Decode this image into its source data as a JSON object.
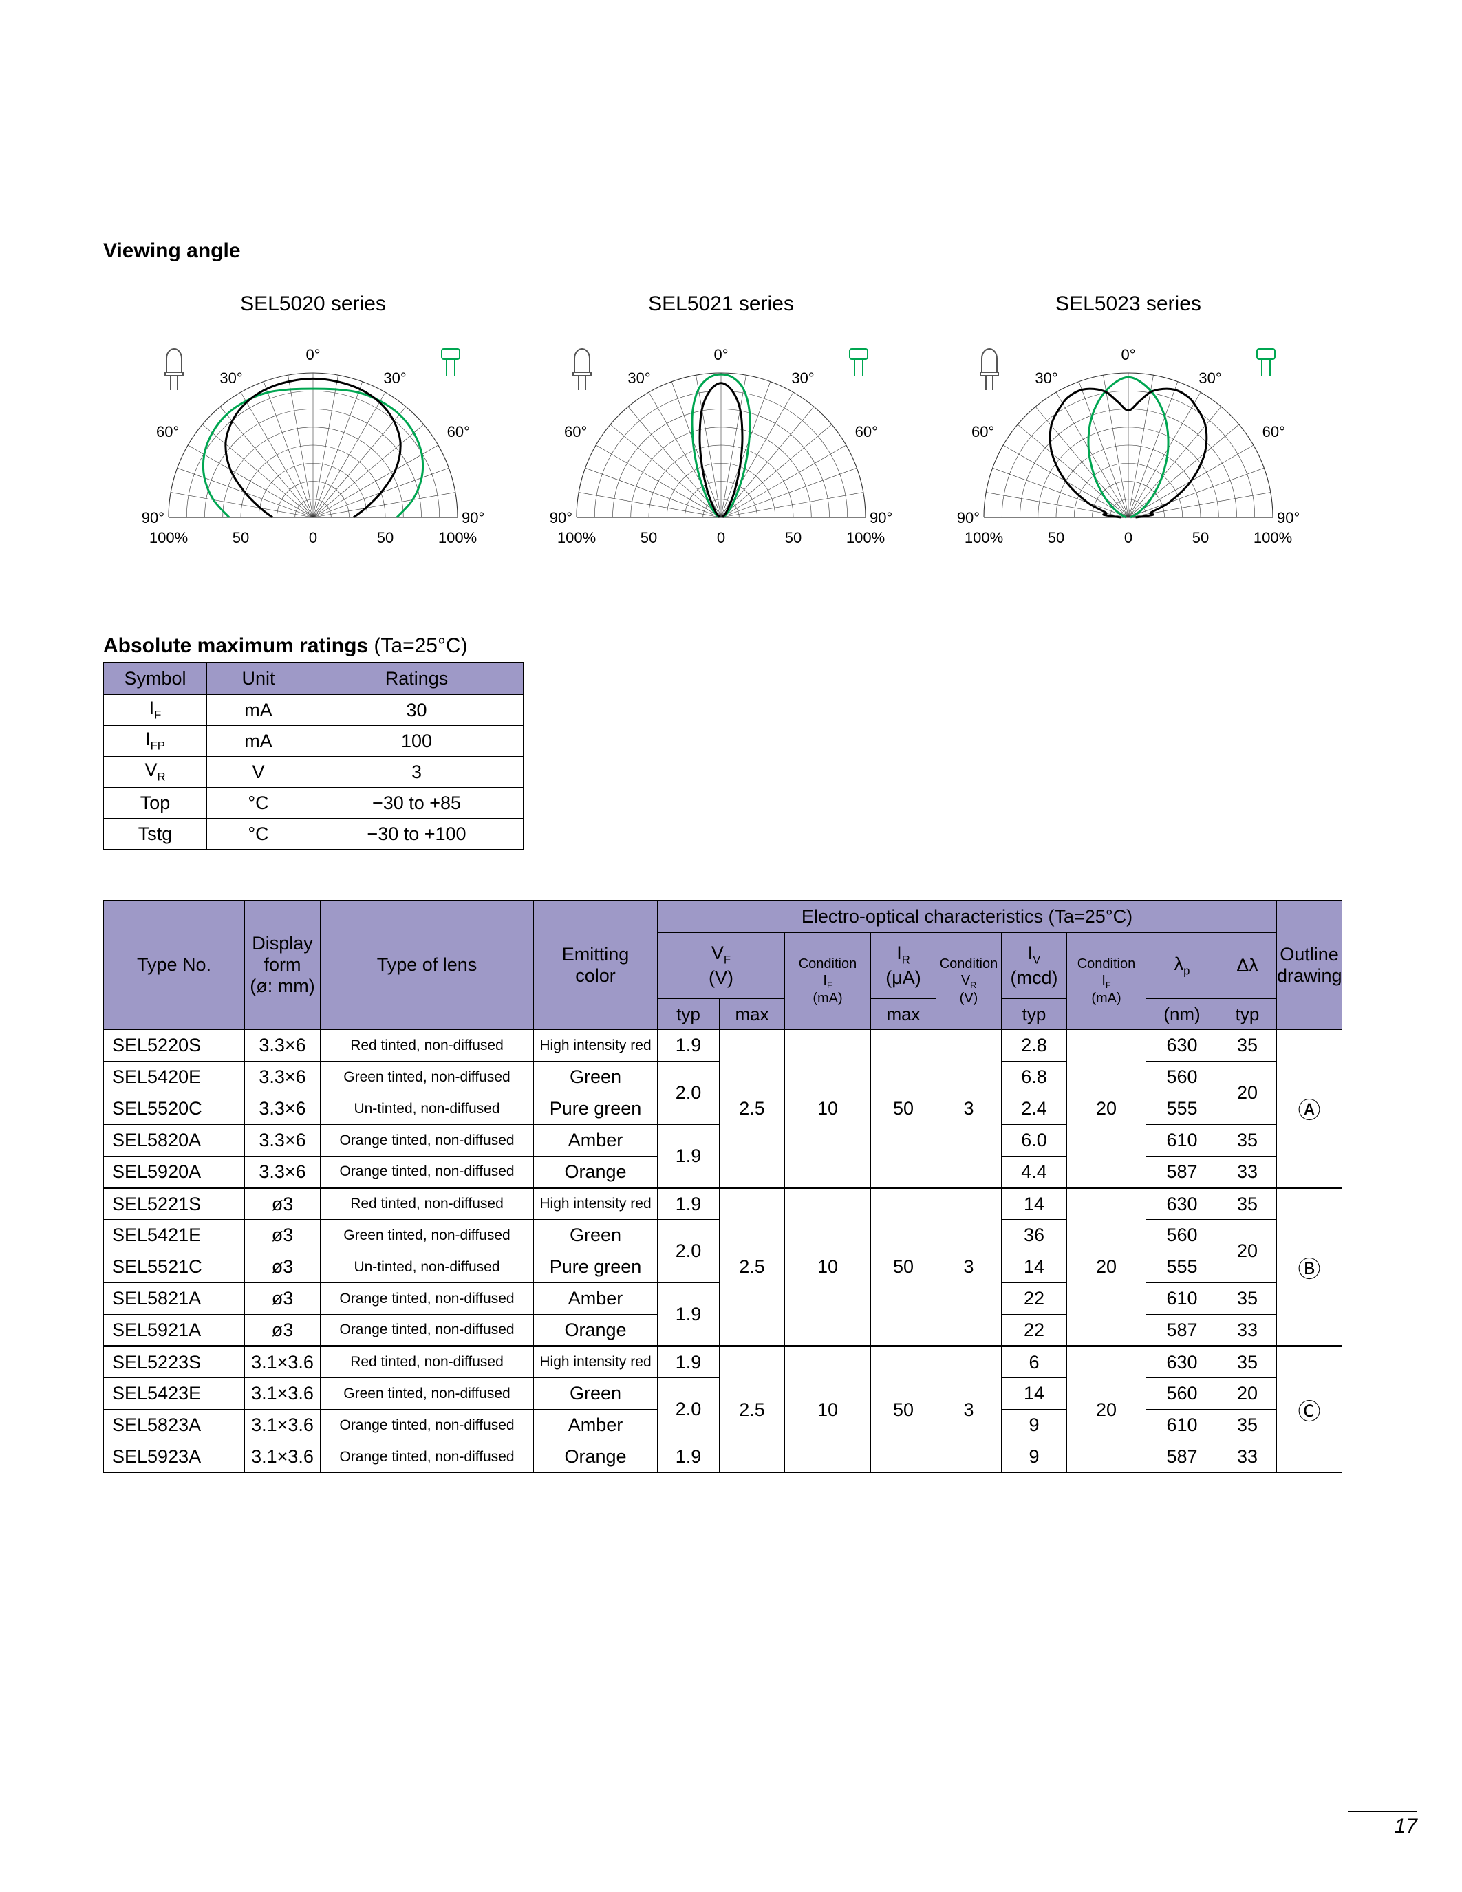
{
  "page_number": "17",
  "viewing_angle": {
    "heading": "Viewing angle",
    "green_color": "#00a651",
    "labels": {
      "zero": "0°",
      "deg30": "30°",
      "deg60": "60°",
      "deg90": "90°",
      "p100": "100%",
      "p50": "50",
      "p0": "0"
    },
    "charts": [
      {
        "title": "SEL5020 series",
        "curves": {
          "black": [
            [
              0,
              0.96
            ],
            [
              10,
              0.955
            ],
            [
              20,
              0.945
            ],
            [
              30,
              0.92
            ],
            [
              40,
              0.87
            ],
            [
              50,
              0.79
            ],
            [
              60,
              0.66
            ],
            [
              70,
              0.5
            ],
            [
              80,
              0.37
            ],
            [
              90,
              0.28
            ]
          ],
          "green": [
            [
              0,
              0.89
            ],
            [
              10,
              0.9
            ],
            [
              20,
              0.92
            ],
            [
              30,
              0.93
            ],
            [
              40,
              0.93
            ],
            [
              50,
              0.91
            ],
            [
              60,
              0.87
            ],
            [
              70,
              0.8
            ],
            [
              80,
              0.7
            ],
            [
              90,
              0.58
            ]
          ]
        }
      },
      {
        "title": "SEL5021 series",
        "curves": {
          "black": [
            [
              0,
              0.93
            ],
            [
              5,
              0.88
            ],
            [
              10,
              0.76
            ],
            [
              15,
              0.57
            ],
            [
              20,
              0.39
            ],
            [
              25,
              0.25
            ],
            [
              30,
              0.16
            ],
            [
              40,
              0.07
            ],
            [
              50,
              0.04
            ],
            [
              60,
              0.02
            ],
            [
              75,
              0.012
            ],
            [
              90,
              0.01
            ]
          ],
          "green": [
            [
              0,
              0.99
            ],
            [
              5,
              0.97
            ],
            [
              10,
              0.9
            ],
            [
              15,
              0.76
            ],
            [
              20,
              0.57
            ],
            [
              25,
              0.4
            ],
            [
              30,
              0.27
            ],
            [
              40,
              0.13
            ],
            [
              50,
              0.07
            ],
            [
              60,
              0.04
            ],
            [
              75,
              0.02
            ],
            [
              90,
              0.015
            ]
          ]
        }
      },
      {
        "title": "SEL5023 series",
        "curves": {
          "black": [
            [
              0,
              0.74
            ],
            [
              5,
              0.8
            ],
            [
              10,
              0.88
            ],
            [
              15,
              0.92
            ],
            [
              20,
              0.94
            ],
            [
              25,
              0.935
            ],
            [
              30,
              0.91
            ],
            [
              40,
              0.83
            ],
            [
              50,
              0.69
            ],
            [
              60,
              0.5
            ],
            [
              70,
              0.3
            ],
            [
              78,
              0.16
            ],
            [
              84,
              0.17
            ],
            [
              90,
              0.05
            ]
          ],
          "green": [
            [
              0,
              0.97
            ],
            [
              10,
              0.89
            ],
            [
              20,
              0.74
            ],
            [
              30,
              0.55
            ],
            [
              40,
              0.36
            ],
            [
              50,
              0.21
            ],
            [
              60,
              0.11
            ],
            [
              70,
              0.05
            ],
            [
              80,
              0.025
            ],
            [
              90,
              0.015
            ]
          ]
        }
      }
    ]
  },
  "abs_max": {
    "heading_bold": "Absolute maximum ratings",
    "heading_note": " (Ta=25°C)",
    "headers": [
      "Symbol",
      "Unit",
      "Ratings"
    ],
    "rows": [
      {
        "symbol": "I",
        "symbol_sub": "F",
        "unit": "mA",
        "rating": "30"
      },
      {
        "symbol": "I",
        "symbol_sub": "FP",
        "unit": "mA",
        "rating": "100"
      },
      {
        "symbol": "V",
        "symbol_sub": "R",
        "unit": "V",
        "rating": "3"
      },
      {
        "symbol": "Top",
        "symbol_sub": "",
        "unit": "°C",
        "rating": "−30 to +85"
      },
      {
        "symbol": "Tstg",
        "symbol_sub": "",
        "unit": "°C",
        "rating": "−30 to +100"
      }
    ]
  },
  "eo": {
    "span_header": "Electro-optical characteristics (Ta=25°C)",
    "cols": {
      "type_no": "Type No.",
      "display_form": [
        "Display",
        "form",
        "(ø: mm)"
      ],
      "lens": "Type of lens",
      "emitting": [
        "Emitting",
        "color"
      ],
      "vf": {
        "main": "V",
        "sub": "F",
        "unit": "(V)"
      },
      "cond_if": {
        "l1": "Condition",
        "main": "I",
        "sub": "F",
        "unit": "(mA)"
      },
      "ir": {
        "main": "I",
        "sub": "R",
        "unit": "(μA)"
      },
      "cond_vr": {
        "l1": "Condition",
        "main": "V",
        "sub": "R",
        "unit": "(V)"
      },
      "iv": {
        "main": "I",
        "sub": "V",
        "unit": "(mcd)"
      },
      "cond_if2": {
        "l1": "Condition",
        "main": "I",
        "sub": "F",
        "unit": "(mA)"
      },
      "lp": {
        "main": "λ",
        "sub": "p",
        "unit": "(nm)"
      },
      "dl": "Δλ",
      "outline": [
        "Outline",
        "drawing"
      ],
      "typ": "typ",
      "max": "max"
    },
    "groups": [
      {
        "outline": "Ⓐ",
        "shared": {
          "vf_max": "2.5",
          "cond_if": "10",
          "ir_max": "50",
          "cond_vr": "3",
          "cond_if2": "20"
        },
        "vf_typ": [
          {
            "value": "1.9",
            "rows": 1
          },
          {
            "value": "2.0",
            "rows": 2
          },
          {
            "value": "1.9",
            "rows": 2
          }
        ],
        "dl": [
          {
            "value": "35",
            "rows": 1
          },
          {
            "value": "20",
            "rows": 2
          },
          {
            "value": "35",
            "rows": 1
          },
          {
            "value": "33",
            "rows": 1
          }
        ],
        "rows": [
          {
            "type": "SEL5220S",
            "form": "3.3×6",
            "lens": "Red tinted, non-diffused",
            "color": "High intensity red",
            "iv": "2.8",
            "lp": "630"
          },
          {
            "type": "SEL5420E",
            "form": "3.3×6",
            "lens": "Green tinted, non-diffused",
            "color": "Green",
            "iv": "6.8",
            "lp": "560"
          },
          {
            "type": "SEL5520C",
            "form": "3.3×6",
            "lens": "Un-tinted, non-diffused",
            "color": "Pure green",
            "iv": "2.4",
            "lp": "555"
          },
          {
            "type": "SEL5820A",
            "form": "3.3×6",
            "lens": "Orange tinted, non-diffused",
            "color": "Amber",
            "iv": "6.0",
            "lp": "610"
          },
          {
            "type": "SEL5920A",
            "form": "3.3×6",
            "lens": "Orange tinted, non-diffused",
            "color": "Orange",
            "iv": "4.4",
            "lp": "587"
          }
        ]
      },
      {
        "outline": "Ⓑ",
        "shared": {
          "vf_max": "2.5",
          "cond_if": "10",
          "ir_max": "50",
          "cond_vr": "3",
          "cond_if2": "20"
        },
        "vf_typ": [
          {
            "value": "1.9",
            "rows": 1
          },
          {
            "value": "2.0",
            "rows": 2
          },
          {
            "value": "1.9",
            "rows": 2
          }
        ],
        "dl": [
          {
            "value": "35",
            "rows": 1
          },
          {
            "value": "20",
            "rows": 2
          },
          {
            "value": "35",
            "rows": 1
          },
          {
            "value": "33",
            "rows": 1
          }
        ],
        "rows": [
          {
            "type": "SEL5221S",
            "form": "ø3",
            "lens": "Red tinted, non-diffused",
            "color": "High intensity red",
            "iv": "14",
            "lp": "630"
          },
          {
            "type": "SEL5421E",
            "form": "ø3",
            "lens": "Green tinted, non-diffused",
            "color": "Green",
            "iv": "36",
            "lp": "560"
          },
          {
            "type": "SEL5521C",
            "form": "ø3",
            "lens": "Un-tinted, non-diffused",
            "color": "Pure green",
            "iv": "14",
            "lp": "555"
          },
          {
            "type": "SEL5821A",
            "form": "ø3",
            "lens": "Orange tinted, non-diffused",
            "color": "Amber",
            "iv": "22",
            "lp": "610"
          },
          {
            "type": "SEL5921A",
            "form": "ø3",
            "lens": "Orange tinted, non-diffused",
            "color": "Orange",
            "iv": "22",
            "lp": "587"
          }
        ]
      },
      {
        "outline": "Ⓒ",
        "shared": {
          "vf_max": "2.5",
          "cond_if": "10",
          "ir_max": "50",
          "cond_vr": "3",
          "cond_if2": "20"
        },
        "vf_typ": [
          {
            "value": "1.9",
            "rows": 1
          },
          {
            "value": "2.0",
            "rows": 2
          },
          {
            "value": "1.9",
            "rows": 1
          }
        ],
        "dl": [
          {
            "value": "35",
            "rows": 1
          },
          {
            "value": "20",
            "rows": 1
          },
          {
            "value": "35",
            "rows": 1
          },
          {
            "value": "33",
            "rows": 1
          }
        ],
        "rows": [
          {
            "type": "SEL5223S",
            "form": "3.1×3.6",
            "lens": "Red tinted, non-diffused",
            "color": "High intensity red",
            "iv": "6",
            "lp": "630"
          },
          {
            "type": "SEL5423E",
            "form": "3.1×3.6",
            "lens": "Green tinted, non-diffused",
            "color": "Green",
            "iv": "14",
            "lp": "560"
          },
          {
            "type": "SEL5823A",
            "form": "3.1×3.6",
            "lens": "Orange tinted, non-diffused",
            "color": "Amber",
            "iv": "9",
            "lp": "610"
          },
          {
            "type": "SEL5923A",
            "form": "3.1×3.6",
            "lens": "Orange tinted, non-diffused",
            "color": "Orange",
            "iv": "9",
            "lp": "587"
          }
        ]
      }
    ]
  }
}
